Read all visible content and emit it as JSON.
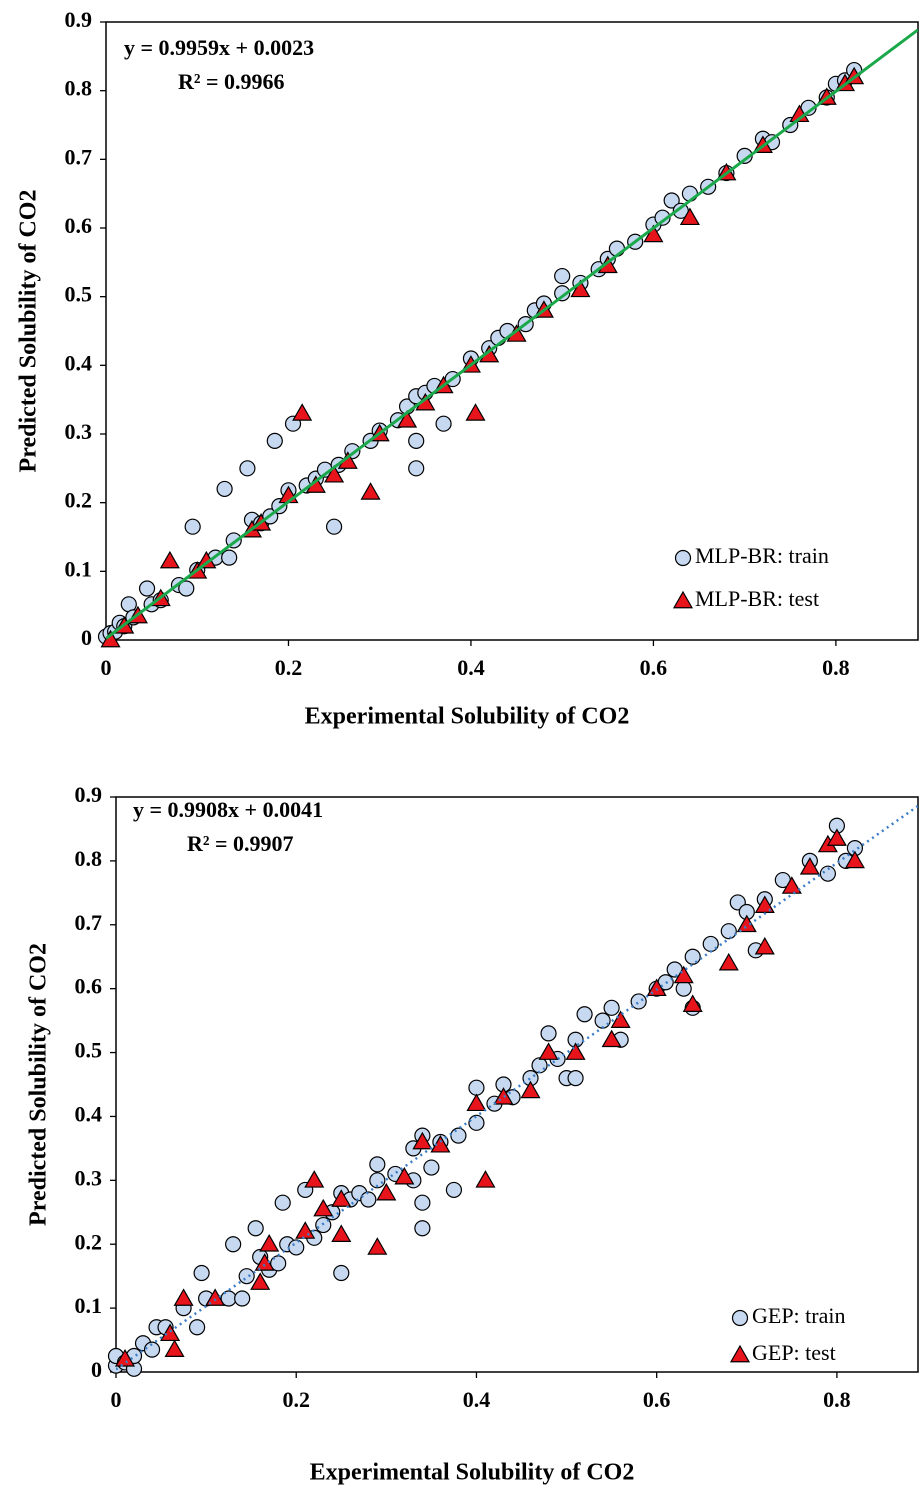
{
  "chart_data": [
    {
      "type": "scatter",
      "xlabel": "Experimental  Solubility  of CO2",
      "ylabel": "Predicted  Solubility  of CO2",
      "xlim": [
        0,
        0.89
      ],
      "ylim": [
        0,
        0.9
      ],
      "xticks": [
        0,
        0.2,
        0.4,
        0.6,
        0.8
      ],
      "yticks": [
        0,
        0.1,
        0.2,
        0.3,
        0.4,
        0.5,
        0.6,
        0.7,
        0.8,
        0.9
      ],
      "annotations": [
        "y = 0.9959x + 0.0023",
        "R² = 0.9966"
      ],
      "trendline": {
        "slope": 0.9959,
        "intercept": 0.0023,
        "color": "#1aa84a",
        "style": "solid"
      },
      "legend": "lower right",
      "series": [
        {
          "name": "MLP-BR: train",
          "color": "#c6d9f0",
          "marker": "circle",
          "x": [
            0,
            0.005,
            0.01,
            0.015,
            0.02,
            0.025,
            0.03,
            0.045,
            0.05,
            0.06,
            0.08,
            0.088,
            0.095,
            0.1,
            0.12,
            0.13,
            0.135,
            0.14,
            0.155,
            0.16,
            0.17,
            0.18,
            0.185,
            0.19,
            0.2,
            0.205,
            0.22,
            0.23,
            0.24,
            0.25,
            0.255,
            0.27,
            0.29,
            0.3,
            0.32,
            0.33,
            0.34,
            0.34,
            0.34,
            0.35,
            0.36,
            0.37,
            0.38,
            0.4,
            0.42,
            0.43,
            0.44,
            0.46,
            0.47,
            0.48,
            0.5,
            0.5,
            0.52,
            0.54,
            0.55,
            0.56,
            0.58,
            0.6,
            0.61,
            0.62,
            0.63,
            0.64,
            0.66,
            0.68,
            0.7,
            0.72,
            0.73,
            0.75,
            0.77,
            0.79,
            0.8,
            0.81,
            0.82
          ],
          "values": [
            0.005,
            0.01,
            0.012,
            0.025,
            0.02,
            0.052,
            0.033,
            0.075,
            0.052,
            0.058,
            0.08,
            0.075,
            0.165,
            0.102,
            0.12,
            0.22,
            0.12,
            0.145,
            0.25,
            0.175,
            0.17,
            0.18,
            0.29,
            0.195,
            0.218,
            0.315,
            0.225,
            0.235,
            0.248,
            0.165,
            0.255,
            0.275,
            0.29,
            0.305,
            0.32,
            0.34,
            0.25,
            0.29,
            0.355,
            0.36,
            0.37,
            0.315,
            0.38,
            0.41,
            0.425,
            0.44,
            0.45,
            0.46,
            0.48,
            0.49,
            0.53,
            0.505,
            0.52,
            0.54,
            0.555,
            0.57,
            0.58,
            0.605,
            0.615,
            0.64,
            0.625,
            0.65,
            0.66,
            0.68,
            0.705,
            0.73,
            0.725,
            0.75,
            0.775,
            0.79,
            0.81,
            0.815,
            0.83
          ]
        },
        {
          "name": "MLP-BR: test",
          "color": "#e8141b",
          "marker": "triangle",
          "x": [
            0.005,
            0.02,
            0.035,
            0.06,
            0.07,
            0.1,
            0.11,
            0.16,
            0.17,
            0.2,
            0.215,
            0.23,
            0.25,
            0.265,
            0.29,
            0.3,
            0.33,
            0.35,
            0.37,
            0.4,
            0.405,
            0.42,
            0.45,
            0.48,
            0.52,
            0.55,
            0.6,
            0.64,
            0.68,
            0.72,
            0.76,
            0.79,
            0.81,
            0.82
          ],
          "values": [
            0,
            0.02,
            0.035,
            0.06,
            0.115,
            0.1,
            0.115,
            0.16,
            0.17,
            0.21,
            0.33,
            0.225,
            0.24,
            0.26,
            0.215,
            0.3,
            0.32,
            0.345,
            0.37,
            0.4,
            0.33,
            0.415,
            0.445,
            0.48,
            0.51,
            0.545,
            0.59,
            0.615,
            0.68,
            0.72,
            0.765,
            0.79,
            0.81,
            0.82
          ]
        }
      ]
    },
    {
      "type": "scatter",
      "xlabel": "Experimental  Solubility  of CO2",
      "ylabel": "Predicted  Solubility  of CO2",
      "xlim": [
        0,
        0.89
      ],
      "ylim": [
        0,
        0.9
      ],
      "xticks": [
        0,
        0.2,
        0.4,
        0.6,
        0.8
      ],
      "yticks": [
        0,
        0.1,
        0.2,
        0.3,
        0.4,
        0.5,
        0.6,
        0.7,
        0.8,
        0.9
      ],
      "annotations": [
        "y = 0.9908x + 0.0041",
        "R² = 0.9907"
      ],
      "trendline": {
        "slope": 0.9908,
        "intercept": 0.0041,
        "color": "#3a7dc8",
        "style": "dotted"
      },
      "legend": "lower right",
      "series": [
        {
          "name": "GEP: train",
          "color": "#c6d9f0",
          "marker": "circle",
          "x": [
            0,
            0,
            0.01,
            0.02,
            0.02,
            0.03,
            0.04,
            0.045,
            0.055,
            0.075,
            0.09,
            0.095,
            0.1,
            0.125,
            0.13,
            0.14,
            0.145,
            0.155,
            0.16,
            0.17,
            0.18,
            0.185,
            0.19,
            0.2,
            0.21,
            0.22,
            0.23,
            0.24,
            0.25,
            0.25,
            0.26,
            0.27,
            0.28,
            0.29,
            0.29,
            0.31,
            0.33,
            0.33,
            0.34,
            0.34,
            0.34,
            0.35,
            0.36,
            0.375,
            0.38,
            0.4,
            0.4,
            0.42,
            0.43,
            0.44,
            0.46,
            0.47,
            0.48,
            0.49,
            0.5,
            0.51,
            0.51,
            0.52,
            0.54,
            0.55,
            0.56,
            0.58,
            0.6,
            0.61,
            0.62,
            0.63,
            0.64,
            0.64,
            0.66,
            0.68,
            0.69,
            0.7,
            0.71,
            0.72,
            0.74,
            0.77,
            0.79,
            0.8,
            0.81,
            0.82
          ],
          "values": [
            0.01,
            0.025,
            0.015,
            0.005,
            0.025,
            0.045,
            0.035,
            0.07,
            0.07,
            0.1,
            0.07,
            0.155,
            0.115,
            0.115,
            0.2,
            0.115,
            0.15,
            0.225,
            0.18,
            0.16,
            0.17,
            0.265,
            0.2,
            0.195,
            0.285,
            0.21,
            0.23,
            0.25,
            0.155,
            0.28,
            0.27,
            0.28,
            0.27,
            0.3,
            0.325,
            0.31,
            0.3,
            0.35,
            0.225,
            0.265,
            0.37,
            0.32,
            0.36,
            0.285,
            0.37,
            0.445,
            0.39,
            0.42,
            0.45,
            0.43,
            0.46,
            0.48,
            0.53,
            0.49,
            0.46,
            0.46,
            0.52,
            0.56,
            0.55,
            0.57,
            0.52,
            0.58,
            0.6,
            0.61,
            0.63,
            0.6,
            0.65,
            0.57,
            0.67,
            0.69,
            0.735,
            0.72,
            0.66,
            0.74,
            0.77,
            0.8,
            0.78,
            0.855,
            0.8,
            0.82
          ]
        },
        {
          "name": "GEP: test",
          "color": "#e8141b",
          "marker": "triangle",
          "x": [
            0.01,
            0.06,
            0.065,
            0.075,
            0.11,
            0.16,
            0.165,
            0.17,
            0.21,
            0.22,
            0.23,
            0.25,
            0.25,
            0.29,
            0.3,
            0.32,
            0.34,
            0.36,
            0.4,
            0.41,
            0.43,
            0.46,
            0.48,
            0.51,
            0.55,
            0.56,
            0.6,
            0.63,
            0.64,
            0.68,
            0.7,
            0.72,
            0.72,
            0.75,
            0.77,
            0.79,
            0.8,
            0.82
          ],
          "values": [
            0.02,
            0.06,
            0.035,
            0.115,
            0.115,
            0.14,
            0.17,
            0.2,
            0.22,
            0.3,
            0.255,
            0.215,
            0.27,
            0.195,
            0.28,
            0.305,
            0.36,
            0.355,
            0.42,
            0.3,
            0.43,
            0.44,
            0.5,
            0.5,
            0.52,
            0.55,
            0.6,
            0.62,
            0.575,
            0.64,
            0.7,
            0.665,
            0.73,
            0.76,
            0.79,
            0.825,
            0.835,
            0.8
          ]
        }
      ]
    }
  ]
}
